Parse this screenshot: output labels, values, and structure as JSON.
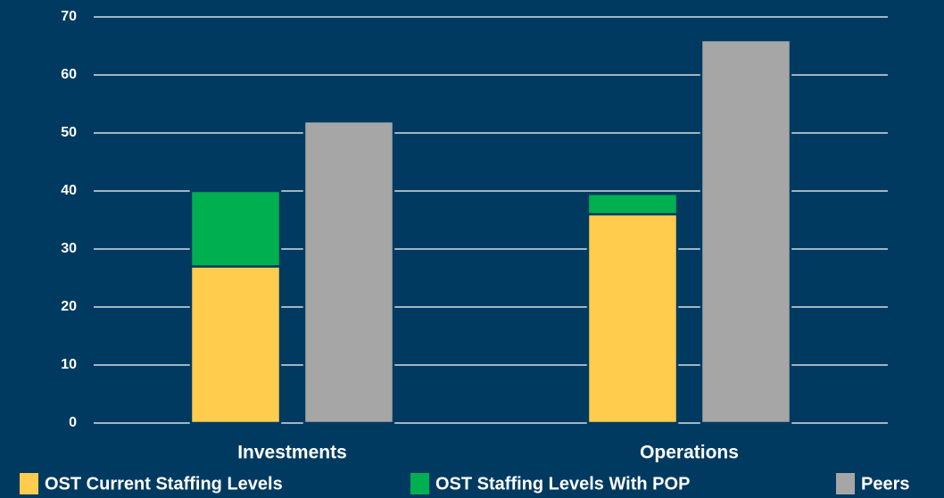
{
  "chart_data": {
    "type": "bar",
    "categories": [
      "Investments",
      "Operations"
    ],
    "series": [
      {
        "name": "OST Current Staffing Levels",
        "color": "#ffcc4e",
        "values": [
          27,
          36
        ],
        "stack": 1
      },
      {
        "name": "OST Staffing Levels With POP",
        "color": "#00b050",
        "values": [
          13,
          3.5
        ],
        "stack": 1
      },
      {
        "name": "Peers",
        "color": "#a6a6a6",
        "values": [
          52,
          66
        ],
        "stack": 2
      }
    ],
    "ylim": [
      0,
      70
    ],
    "yticks": [
      0,
      10,
      20,
      30,
      40,
      50,
      60,
      70
    ],
    "grid": true,
    "legend": "bottom"
  }
}
